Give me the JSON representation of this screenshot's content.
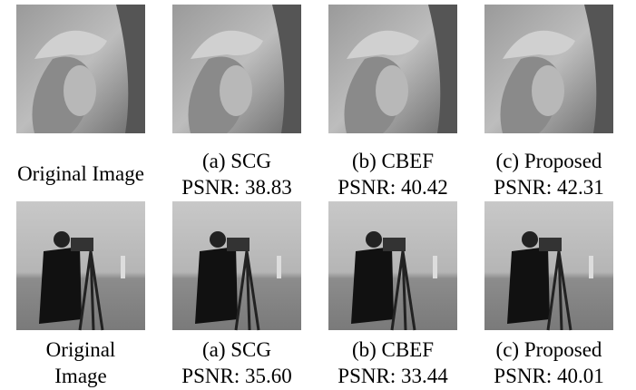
{
  "rows": [
    {
      "panels": [
        {
          "caption": [
            "Original Image"
          ]
        },
        {
          "caption": [
            "(a) SCG",
            "PSNR: 38.83"
          ]
        },
        {
          "caption": [
            "(b) CBEF",
            "PSNR: 40.42"
          ]
        },
        {
          "caption": [
            "(c) Proposed",
            "PSNR: 42.31"
          ]
        }
      ]
    },
    {
      "panels": [
        {
          "caption": [
            "Original",
            "Image"
          ]
        },
        {
          "caption": [
            "(a) SCG",
            "PSNR: 35.60"
          ]
        },
        {
          "caption": [
            "(b) CBEF",
            "PSNR: 33.44"
          ]
        },
        {
          "caption": [
            "(c) Proposed",
            "PSNR: 40.01"
          ]
        }
      ]
    }
  ]
}
